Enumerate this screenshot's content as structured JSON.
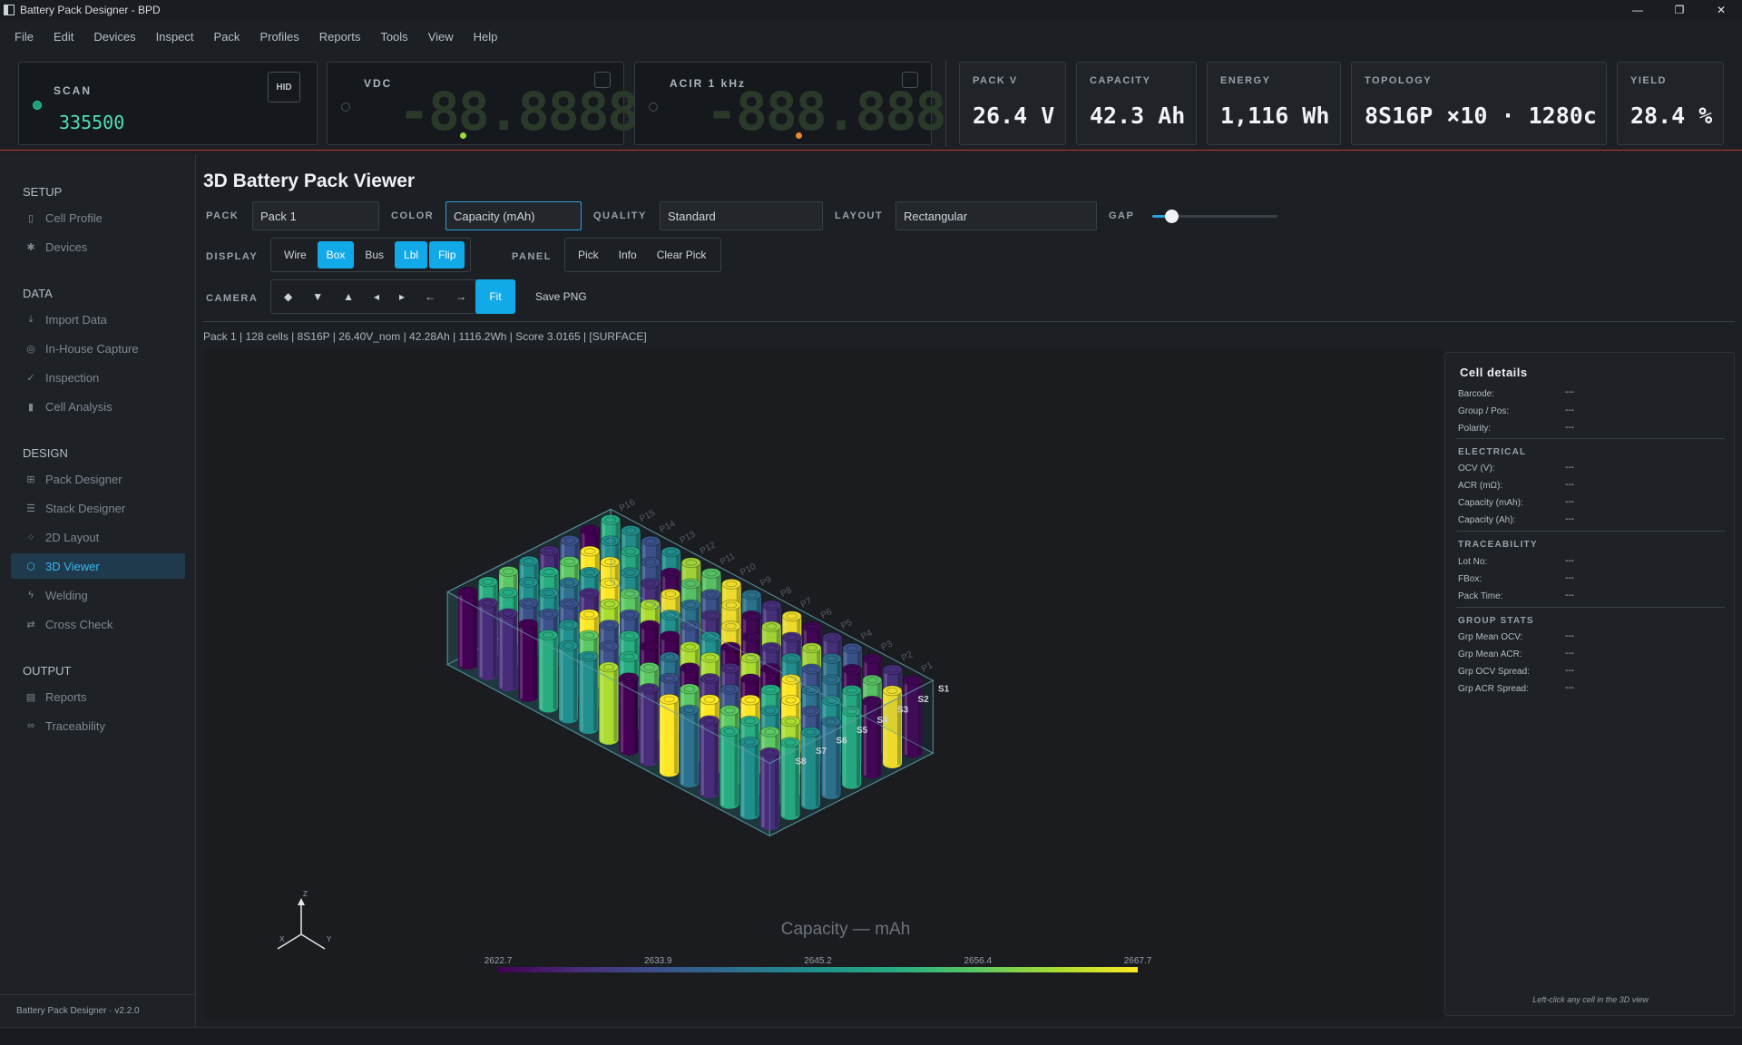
{
  "window": {
    "title": "Battery Pack Designer - BPD",
    "min": "—",
    "max": "❐",
    "close": "✕"
  },
  "menu": [
    "File",
    "Edit",
    "Devices",
    "Inspect",
    "Pack",
    "Profiles",
    "Reports",
    "Tools",
    "View",
    "Help"
  ],
  "meters": {
    "scan": {
      "label": "SCAN",
      "value": "335500",
      "hid": "HID"
    },
    "vdc": {
      "label": "VDC",
      "digits": "-88.8888"
    },
    "acir": {
      "label": "ACIR  1 kHz",
      "digits": "-888.888"
    }
  },
  "stats": [
    {
      "label": "PACK V",
      "value": "26.4 V"
    },
    {
      "label": "CAPACITY",
      "value": "42.3 Ah"
    },
    {
      "label": "ENERGY",
      "value": "1,116 Wh"
    },
    {
      "label": "TOPOLOGY",
      "value": "8S16P ×10 · 1280c"
    },
    {
      "label": "YIELD",
      "value": "28.4 %"
    }
  ],
  "sidebar": {
    "sections": [
      {
        "title": "SETUP",
        "items": [
          {
            "label": "Cell Profile",
            "icon": "file-icon"
          },
          {
            "label": "Devices",
            "icon": "gear-icon"
          }
        ]
      },
      {
        "title": "DATA",
        "items": [
          {
            "label": "Import Data",
            "icon": "download-icon"
          },
          {
            "label": "In-House Capture",
            "icon": "target-icon"
          },
          {
            "label": "Inspection",
            "icon": "check-icon"
          },
          {
            "label": "Cell Analysis",
            "icon": "bar-chart-icon"
          }
        ]
      },
      {
        "title": "DESIGN",
        "items": [
          {
            "label": "Pack Designer",
            "icon": "grid-icon"
          },
          {
            "label": "Stack Designer",
            "icon": "layers-icon"
          },
          {
            "label": "2D Layout",
            "icon": "dots-grid-icon"
          },
          {
            "label": "3D Viewer",
            "icon": "cube-icon",
            "active": true
          },
          {
            "label": "Welding",
            "icon": "bolt-icon"
          },
          {
            "label": "Cross Check",
            "icon": "swap-icon"
          }
        ]
      },
      {
        "title": "OUTPUT",
        "items": [
          {
            "label": "Reports",
            "icon": "report-icon"
          },
          {
            "label": "Traceability",
            "icon": "link-icon"
          }
        ]
      }
    ],
    "footer": "Battery Pack Designer · v2.2.0"
  },
  "page": {
    "title": "3D Battery Pack Viewer",
    "pack_label": "PACK",
    "pack_value": "Pack 1",
    "color_label": "COLOR",
    "color_value": "Capacity (mAh)",
    "quality_label": "QUALITY",
    "quality_value": "Standard",
    "layout_label": "LAYOUT",
    "layout_value": "Rectangular",
    "gap_label": "GAP",
    "gap_value": 0.15,
    "display_label": "DISPLAY",
    "display": [
      {
        "label": "Wire",
        "on": false
      },
      {
        "label": "Box",
        "on": true
      },
      {
        "label": "Bus",
        "on": false
      },
      {
        "label": "Lbl",
        "on": true
      },
      {
        "label": "Flip",
        "on": true
      }
    ],
    "panel_label": "PANEL",
    "panel": [
      "Pick",
      "Info",
      "Clear Pick"
    ],
    "camera_label": "CAMERA",
    "camera": [
      "◆",
      "▼",
      "▲",
      "◂",
      "▸",
      "←",
      "→"
    ],
    "fit": "Fit",
    "save_png": "Save PNG",
    "summary": "Pack 1  |  128 cells  |  8S16P  |  26.40V_nom  |  42.28Ah  |  1116.2Wh  |  Score 3.0165  |  [SURFACE]"
  },
  "viewer": {
    "colorbar_title": "Capacity — mAh",
    "colorbar_ticks": [
      "2622.7",
      "2633.9",
      "2645.2",
      "2656.4",
      "2667.7"
    ],
    "series_labels": [
      "S1",
      "S2",
      "S3",
      "S4",
      "S5",
      "S6",
      "S7",
      "S8"
    ],
    "parallel_labels": [
      "P1",
      "P2",
      "P3",
      "P4",
      "P5",
      "P6",
      "P7",
      "P8",
      "P9",
      "P10",
      "P11",
      "P12",
      "P13",
      "P14",
      "P15",
      "P16"
    ],
    "axes": {
      "z": "Z",
      "x": "X",
      "y": "Y"
    },
    "colors": [
      "#440154",
      "#472c7a",
      "#3b518b",
      "#2c718e",
      "#21908d",
      "#27ad81",
      "#5cc863",
      "#aadc32",
      "#fde725"
    ]
  },
  "details": {
    "title": "Cell details",
    "top": [
      {
        "k": "Barcode:",
        "v": "---"
      },
      {
        "k": "Group / Pos:",
        "v": "---"
      },
      {
        "k": "Polarity:",
        "v": "---"
      }
    ],
    "electrical_title": "ELECTRICAL",
    "electrical": [
      {
        "k": "OCV (V):",
        "v": "---"
      },
      {
        "k": "ACR (mΩ):",
        "v": "---"
      },
      {
        "k": "Capacity (mAh):",
        "v": "---"
      },
      {
        "k": "Capacity (Ah):",
        "v": "---"
      }
    ],
    "trace_title": "TRACEABILITY",
    "trace": [
      {
        "k": "Lot No:",
        "v": "---"
      },
      {
        "k": "FBox:",
        "v": "---"
      },
      {
        "k": "Pack Time:",
        "v": "---"
      }
    ],
    "group_title": "GROUP STATS",
    "group": [
      {
        "k": "Grp Mean OCV:",
        "v": "---"
      },
      {
        "k": "Grp Mean ACR:",
        "v": "---"
      },
      {
        "k": "Grp OCV Spread:",
        "v": "---"
      },
      {
        "k": "Grp ACR Spread:",
        "v": "---"
      }
    ],
    "hint": "Left-click any cell in the 3D view"
  }
}
